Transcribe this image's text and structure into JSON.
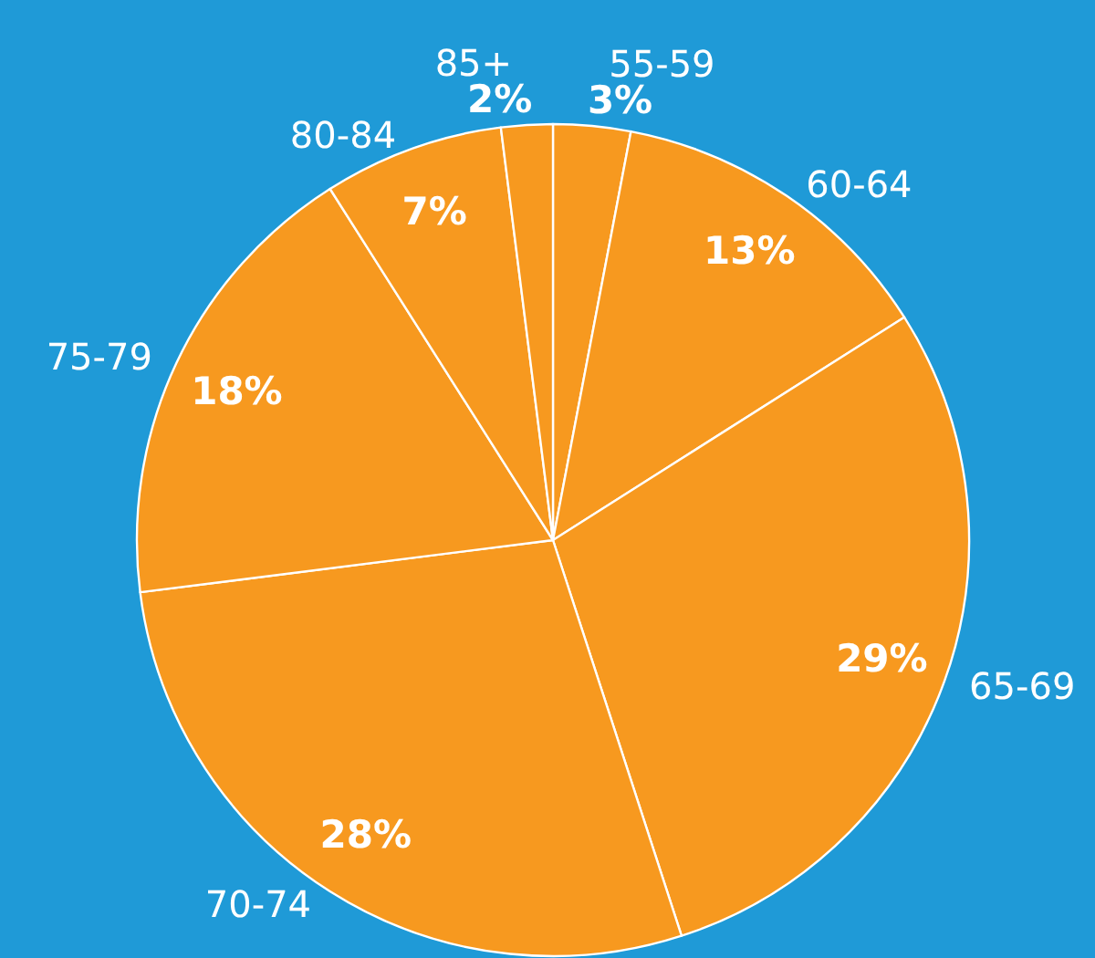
{
  "chart_data": {
    "type": "pie",
    "categories": [
      "55-59",
      "60-64",
      "65-69",
      "70-74",
      "75-79",
      "80-84",
      "85+"
    ],
    "values": [
      3,
      13,
      29,
      28,
      18,
      7,
      2
    ],
    "colors": [
      "#f7991f",
      "#f7991f",
      "#f7991f",
      "#f7991f",
      "#f7991f",
      "#f7991f",
      "#f7991f"
    ],
    "value_labels": [
      "3%",
      "13%",
      "29%",
      "28%",
      "18%",
      "7%",
      "2%"
    ],
    "legend": false
  }
}
